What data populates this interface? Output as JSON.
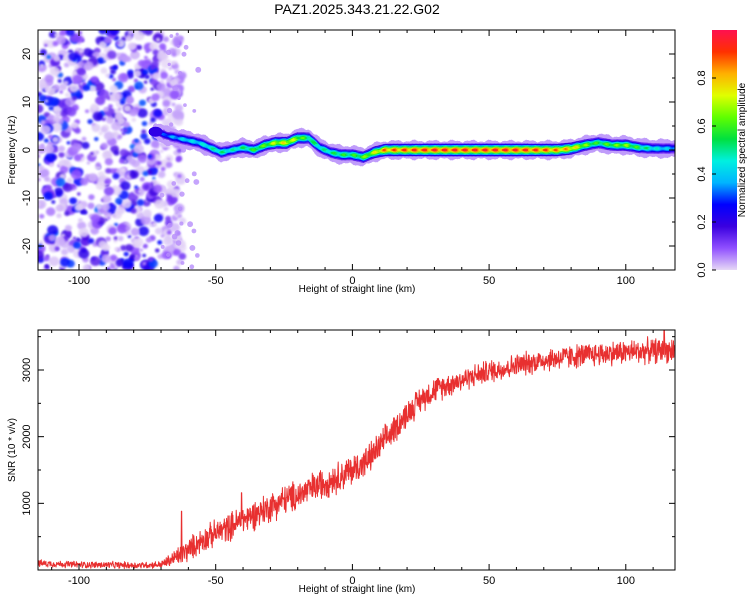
{
  "title": "PAZ1.2025.343.21.22.G02",
  "chart_data": [
    {
      "type": "heatmap",
      "name": "spectrogram",
      "xlabel": "Height of straight line (km)",
      "ylabel": "Frequency (Hz)",
      "xlim": [
        -115,
        118
      ],
      "ylim": [
        -25,
        25
      ],
      "xticks": [
        -100,
        -50,
        0,
        50,
        100
      ],
      "xtick_labels": [
        "-100",
        "-50",
        "0",
        "50",
        "100"
      ],
      "yticks": [
        20,
        10,
        0,
        -10,
        -20
      ],
      "ytick_labels": [
        "20",
        "10",
        "0",
        "-10",
        "-20"
      ],
      "colorbar": {
        "label": "Normalized spectral amplitude",
        "range": [
          0,
          1
        ],
        "ticks": [
          0.0,
          0.2,
          0.4,
          0.6,
          0.8
        ],
        "tick_labels": [
          "0.0",
          "0.2",
          "0.4",
          "0.6",
          "0.8"
        ],
        "colors": [
          "#e6d8f6",
          "#9050ff",
          "#3a00e0",
          "#0000ff",
          "#00b4ff",
          "#00f0e0",
          "#00e040",
          "#60ff00",
          "#e0ff00",
          "#ffb000",
          "#ff3000",
          "#ff1050"
        ]
      },
      "noise_region_x": [
        -115,
        -70
      ],
      "ridge": {
        "x": [
          -72,
          -68,
          -64,
          -60,
          -56,
          -52,
          -48,
          -44,
          -40,
          -36,
          -32,
          -28,
          -24,
          -20,
          -16,
          -12,
          -8,
          -4,
          0,
          4,
          8,
          12,
          20,
          30,
          40,
          50,
          60,
          70,
          75,
          80,
          85,
          90,
          95,
          100,
          105,
          110,
          118
        ],
        "freq": [
          4,
          3,
          2.5,
          2,
          1.5,
          0.5,
          -0.5,
          0,
          0.5,
          0,
          1,
          1.5,
          1.5,
          2.5,
          2.5,
          0.5,
          -0.5,
          -1,
          -1,
          -1.5,
          -0.5,
          0,
          0,
          0,
          0,
          0,
          0,
          0,
          0,
          0.3,
          1,
          1.5,
          1,
          1,
          0.5,
          0.3,
          0.3
        ],
        "amplitude": [
          0.25,
          0.35,
          0.4,
          0.45,
          0.45,
          0.5,
          0.55,
          0.5,
          0.55,
          0.6,
          0.65,
          0.75,
          0.8,
          0.7,
          0.6,
          0.5,
          0.55,
          0.6,
          0.6,
          0.65,
          0.75,
          0.9,
          0.95,
          0.98,
          0.98,
          0.98,
          0.98,
          0.95,
          0.9,
          0.85,
          0.7,
          0.6,
          0.65,
          0.7,
          0.6,
          0.5,
          0.4
        ]
      }
    },
    {
      "type": "line",
      "name": "snr",
      "xlabel": "Height of straight line (km)",
      "ylabel": "SNR (10 * v/v)",
      "xlim": [
        -115,
        118
      ],
      "ylim": [
        0,
        3600
      ],
      "xticks": [
        -100,
        -50,
        0,
        50,
        100
      ],
      "xtick_labels": [
        "-100",
        "-50",
        "0",
        "50",
        "100"
      ],
      "yticks": [
        1000,
        2000,
        3000
      ],
      "ytick_labels": [
        "1000",
        "2000",
        "3000"
      ],
      "color": "#e83030",
      "trend": {
        "x": [
          -115,
          -100,
          -80,
          -70,
          -65,
          -60,
          -55,
          -50,
          -45,
          -40,
          -35,
          -30,
          -25,
          -20,
          -15,
          -10,
          -5,
          0,
          5,
          10,
          15,
          20,
          25,
          30,
          35,
          40,
          45,
          50,
          55,
          60,
          70,
          80,
          90,
          100,
          110,
          118
        ],
        "y": [
          100,
          80,
          70,
          80,
          180,
          300,
          450,
          550,
          650,
          750,
          850,
          950,
          1050,
          1120,
          1220,
          1320,
          1400,
          1500,
          1620,
          1850,
          2100,
          2350,
          2560,
          2700,
          2780,
          2850,
          2920,
          2980,
          3020,
          3070,
          3150,
          3200,
          3240,
          3270,
          3290,
          3300
        ]
      },
      "noise_amplitude": [
        [
          -115,
          60
        ],
        [
          -70,
          60
        ],
        [
          -62,
          200
        ],
        [
          -40,
          260
        ],
        [
          0,
          280
        ],
        [
          40,
          200
        ],
        [
          118,
          220
        ]
      ],
      "spikes": [
        {
          "x": -62.5,
          "y": 880
        },
        {
          "x": -40.5,
          "y": 1160
        },
        {
          "x": 114,
          "y": 3680
        }
      ]
    }
  ]
}
